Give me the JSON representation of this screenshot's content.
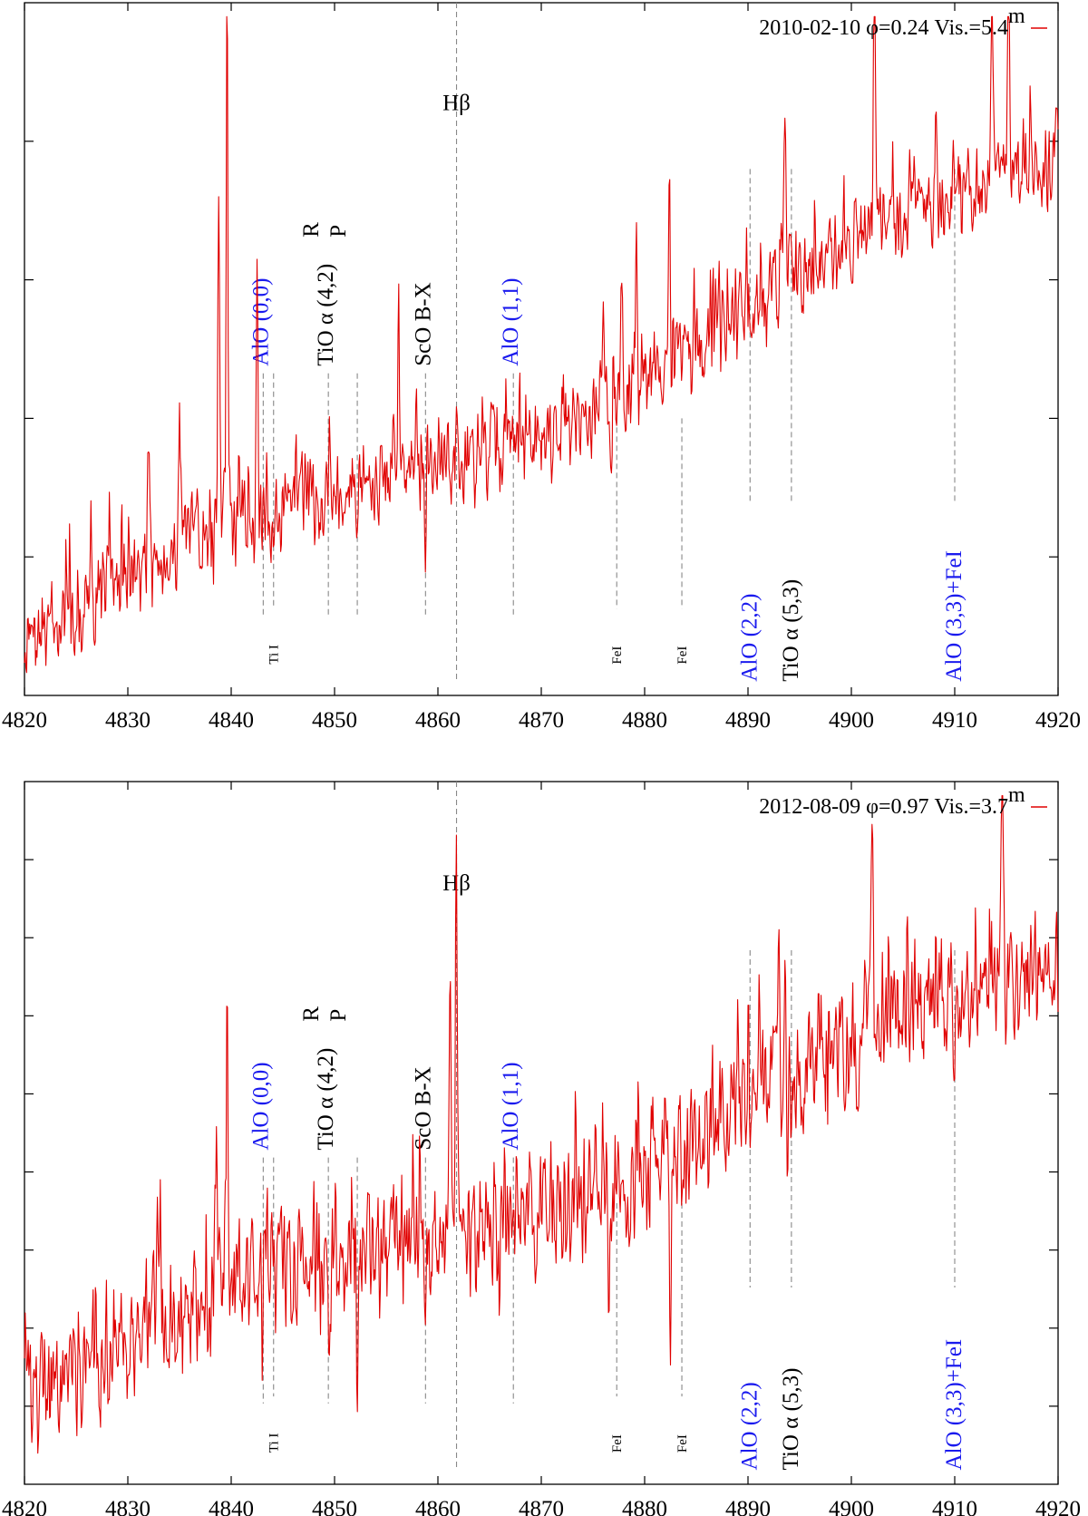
{
  "chart_data": [
    {
      "type": "line",
      "xlim": [
        4820,
        4920
      ],
      "x_ticks": [
        4820,
        4830,
        4840,
        4850,
        4860,
        4870,
        4880,
        4890,
        4900,
        4910,
        4920
      ],
      "y_tick_count": 4,
      "legend": {
        "label": "2010-02-10 φ=0.24 Vis.=5.4",
        "sup": "m",
        "color": "#e00000",
        "position": "top-right"
      },
      "series": [
        {
          "name": "2010-02-10",
          "color": "#e00000",
          "seed": 7,
          "start": 0.07,
          "end": 0.76,
          "noise": 0.16,
          "features": [
            {
              "x": 4839.6,
              "h": 0.78
            },
            {
              "x": 4838.8,
              "h": 0.52
            },
            {
              "x": 4842.5,
              "h": 0.38
            },
            {
              "x": 4835.0,
              "h": 0.22
            },
            {
              "x": 4832.0,
              "h": 0.2
            },
            {
              "x": 4843.8,
              "h": -0.08
            },
            {
              "x": 4858.8,
              "h": -0.1
            },
            {
              "x": 4856.2,
              "h": 0.22
            },
            {
              "x": 4861.8,
              "h": 0.12
            },
            {
              "x": 4876.8,
              "h": -0.08
            },
            {
              "x": 4882.6,
              "h": -0.1
            },
            {
              "x": 4876.0,
              "h": 0.2
            },
            {
              "x": 4877.8,
              "h": 0.2
            },
            {
              "x": 4879.2,
              "h": 0.22
            },
            {
              "x": 4882.4,
              "h": 0.25
            },
            {
              "x": 4893.6,
              "h": 0.26
            },
            {
              "x": 4902.2,
              "h": 0.35
            },
            {
              "x": 4915.2,
              "h": 0.4
            },
            {
              "x": 4913.6,
              "h": 0.33
            }
          ]
        }
      ],
      "line_ids": [
        {
          "x": 4843.1,
          "label": "AlO (0,0)",
          "color": "blue",
          "label_pos": "above"
        },
        {
          "x": 4844.1,
          "label": "Ti I",
          "color": "black",
          "label_pos": "below"
        },
        {
          "x": 4849.4,
          "label": "TiO α (4,2)",
          "color": "black",
          "label_pos": "above",
          "sup_R": "R",
          "sub_P": "P"
        },
        {
          "x": 4852.2,
          "label": "",
          "color": "black",
          "label_pos": "none"
        },
        {
          "x": 4858.8,
          "label": "ScO B-X",
          "color": "black",
          "label_pos": "above"
        },
        {
          "x": 4861.8,
          "label": "Hβ",
          "color": "black",
          "label_pos": "top"
        },
        {
          "x": 4867.3,
          "label": "AlO (1,1)",
          "color": "blue",
          "label_pos": "above"
        },
        {
          "x": 4877.3,
          "label": "FeI",
          "color": "black",
          "label_pos": "below"
        },
        {
          "x": 4883.6,
          "label": "FeI",
          "color": "black",
          "label_pos": "below"
        },
        {
          "x": 4890.2,
          "label": "AlO (2,2)",
          "color": "blue",
          "label_pos": "below"
        },
        {
          "x": 4894.2,
          "label": "TiO α (5,3)",
          "color": "black",
          "label_pos": "below"
        },
        {
          "x": 4910.0,
          "label": "AlO (3,3)+FeI",
          "color": "blue",
          "label_pos": "below"
        }
      ]
    },
    {
      "type": "line",
      "xlim": [
        4820,
        4920
      ],
      "x_ticks": [
        4820,
        4830,
        4840,
        4850,
        4860,
        4870,
        4880,
        4890,
        4900,
        4910,
        4920
      ],
      "y_tick_count": 8,
      "legend": {
        "label": "2012-08-09 φ=0.97 Vis.=3.7",
        "sup": "m",
        "color": "#e00000",
        "position": "top-right"
      },
      "series": [
        {
          "name": "2012-08-09",
          "color": "#e00000",
          "seed": 19,
          "start": 0.12,
          "end": 0.72,
          "noise": 0.22,
          "features": [
            {
              "x": 4839.6,
              "h": 0.35
            },
            {
              "x": 4838.6,
              "h": 0.22
            },
            {
              "x": 4843.0,
              "h": -0.12
            },
            {
              "x": 4849.4,
              "h": -0.1
            },
            {
              "x": 4852.2,
              "h": -0.12
            },
            {
              "x": 4858.8,
              "h": -0.1
            },
            {
              "x": 4861.8,
              "h": 0.55
            },
            {
              "x": 4861.2,
              "h": 0.4
            },
            {
              "x": 4866.0,
              "h": -0.12
            },
            {
              "x": 4876.5,
              "h": -0.22
            },
            {
              "x": 4882.5,
              "h": -0.3
            },
            {
              "x": 4893.8,
              "h": -0.14
            },
            {
              "x": 4893.0,
              "h": 0.2
            },
            {
              "x": 4902.0,
              "h": 0.3
            },
            {
              "x": 4914.6,
              "h": 0.4
            },
            {
              "x": 4910.0,
              "h": -0.1
            }
          ]
        }
      ],
      "line_ids": [
        {
          "x": 4843.1,
          "label": "AlO (0,0)",
          "color": "blue",
          "label_pos": "above"
        },
        {
          "x": 4844.1,
          "label": "Ti I",
          "color": "black",
          "label_pos": "below"
        },
        {
          "x": 4849.4,
          "label": "TiO α (4,2)",
          "color": "black",
          "label_pos": "above",
          "sup_R": "R",
          "sub_P": "P"
        },
        {
          "x": 4852.2,
          "label": "",
          "color": "black",
          "label_pos": "none"
        },
        {
          "x": 4858.8,
          "label": "ScO B-X",
          "color": "black",
          "label_pos": "above"
        },
        {
          "x": 4861.8,
          "label": "Hβ",
          "color": "black",
          "label_pos": "top"
        },
        {
          "x": 4867.3,
          "label": "AlO (1,1)",
          "color": "blue",
          "label_pos": "above"
        },
        {
          "x": 4877.3,
          "label": "FeI",
          "color": "black",
          "label_pos": "below"
        },
        {
          "x": 4883.6,
          "label": "FeI",
          "color": "black",
          "label_pos": "below"
        },
        {
          "x": 4890.2,
          "label": "AlO (2,2)",
          "color": "blue",
          "label_pos": "below"
        },
        {
          "x": 4894.2,
          "label": "TiO α (5,3)",
          "color": "black",
          "label_pos": "below"
        },
        {
          "x": 4910.0,
          "label": "AlO (3,3)+FeI",
          "color": "blue",
          "label_pos": "below"
        }
      ]
    }
  ]
}
